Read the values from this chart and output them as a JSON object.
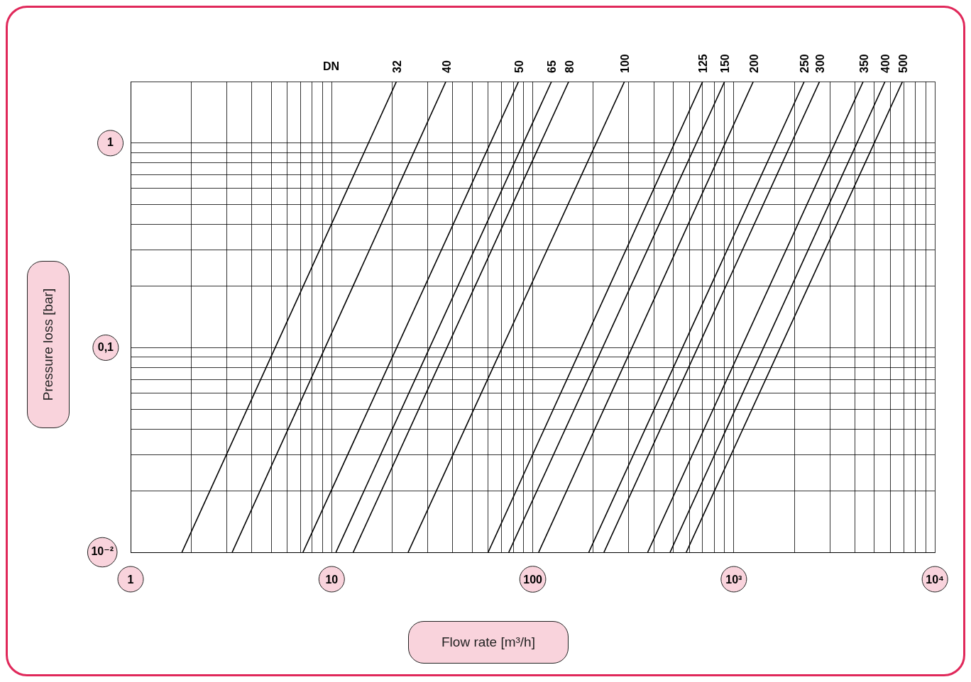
{
  "chart_data": {
    "type": "line",
    "legend_title": "DN",
    "xlabel": "Flow rate [m³/h]",
    "ylabel": "Pressure loss [bar]",
    "log": "xy",
    "grid": true,
    "marker": "none",
    "line_style": "solid",
    "xlim": [
      1,
      10000
    ],
    "ylim": [
      0.01,
      2
    ],
    "xticks": [
      1,
      {
        "value": 2,
        "label": null
      },
      {
        "value": 3,
        "label": null
      },
      {
        "value": 4,
        "label": null
      },
      {
        "value": 5,
        "label": null
      },
      {
        "value": 6,
        "label": null
      },
      {
        "value": 7,
        "label": null
      },
      {
        "value": 8,
        "label": null
      },
      {
        "value": 9,
        "label": null
      },
      10,
      {
        "value": 20,
        "label": null
      },
      {
        "value": 30,
        "label": null
      },
      {
        "value": 40,
        "label": null
      },
      {
        "value": 50,
        "label": null
      },
      {
        "value": 60,
        "label": null
      },
      {
        "value": 70,
        "label": null
      },
      {
        "value": 80,
        "label": null
      },
      {
        "value": 90,
        "label": null
      },
      100,
      {
        "value": 200,
        "label": null
      },
      {
        "value": 300,
        "label": null
      },
      {
        "value": 400,
        "label": null
      },
      {
        "value": 500,
        "label": null
      },
      {
        "value": 600,
        "label": null
      },
      {
        "value": 700,
        "label": null
      },
      {
        "value": 800,
        "label": null
      },
      {
        "value": 900,
        "label": null
      },
      {
        "value": 1000,
        "label": "10³"
      },
      {
        "value": 2000,
        "label": null
      },
      {
        "value": 3000,
        "label": null
      },
      {
        "value": 4000,
        "label": null
      },
      {
        "value": 5000,
        "label": null
      },
      {
        "value": 6000,
        "label": null
      },
      {
        "value": 7000,
        "label": null
      },
      {
        "value": 8000,
        "label": null
      },
      {
        "value": 9000,
        "label": null
      },
      {
        "value": 10000,
        "label": "10⁴"
      }
    ],
    "yticks": [
      {
        "value": 0.01,
        "label": "10⁻²"
      },
      {
        "value": 0.02,
        "label": null
      },
      {
        "value": 0.03,
        "label": null
      },
      {
        "value": 0.04,
        "label": null
      },
      {
        "value": 0.05,
        "label": null
      },
      {
        "value": 0.06,
        "label": null
      },
      {
        "value": 0.07,
        "label": null
      },
      {
        "value": 0.08,
        "label": null
      },
      {
        "value": 0.09,
        "label": null
      },
      {
        "value": 0.1,
        "label": "0,1"
      },
      {
        "value": 0.2,
        "label": null
      },
      {
        "value": 0.3,
        "label": null
      },
      {
        "value": 0.4,
        "label": null
      },
      {
        "value": 0.5,
        "label": null
      },
      {
        "value": 0.6,
        "label": null
      },
      {
        "value": 0.7,
        "label": null
      },
      {
        "value": 0.8,
        "label": null
      },
      {
        "value": 0.9,
        "label": null
      },
      1,
      {
        "value": 2,
        "label": null
      }
    ],
    "series": [
      {
        "name": "32",
        "color": "#000000",
        "x": [
          1.8,
          21
        ],
        "values": [
          0.01,
          2
        ]
      },
      {
        "name": "40",
        "color": "#000000",
        "x": [
          3.2,
          37
        ],
        "values": [
          0.01,
          2
        ]
      },
      {
        "name": "50",
        "color": "#000000",
        "x": [
          7.2,
          85
        ],
        "values": [
          0.01,
          2
        ]
      },
      {
        "name": "65",
        "color": "#000000",
        "x": [
          10.5,
          124
        ],
        "values": [
          0.01,
          2
        ]
      },
      {
        "name": "80",
        "color": "#000000",
        "x": [
          12.8,
          151
        ],
        "values": [
          0.01,
          2
        ]
      },
      {
        "name": "100",
        "color": "#000000",
        "x": [
          24,
          286
        ],
        "values": [
          0.01,
          2
        ]
      },
      {
        "name": "125",
        "color": "#000000",
        "x": [
          60,
          700
        ],
        "values": [
          0.01,
          2
        ]
      },
      {
        "name": "150",
        "color": "#000000",
        "x": [
          76,
          900
        ],
        "values": [
          0.01,
          2
        ]
      },
      {
        "name": "200",
        "color": "#000000",
        "x": [
          107,
          1250
        ],
        "values": [
          0.01,
          2
        ]
      },
      {
        "name": "250",
        "color": "#000000",
        "x": [
          190,
          2240
        ],
        "values": [
          0.01,
          2
        ]
      },
      {
        "name": "300",
        "color": "#000000",
        "x": [
          226,
          2670
        ],
        "values": [
          0.01,
          2
        ]
      },
      {
        "name": "350",
        "color": "#000000",
        "x": [
          373,
          4400
        ],
        "values": [
          0.01,
          2
        ]
      },
      {
        "name": "400",
        "color": "#000000",
        "x": [
          482,
          5650
        ],
        "values": [
          0.01,
          2
        ]
      },
      {
        "name": "500",
        "color": "#000000",
        "x": [
          580,
          6900
        ],
        "values": [
          0.01,
          2
        ]
      }
    ]
  }
}
